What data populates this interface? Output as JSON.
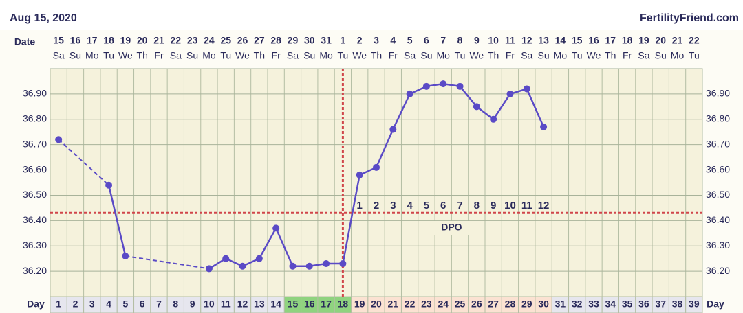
{
  "header": {
    "date": "Aug 15, 2020",
    "site": "FertilityFriend.com"
  },
  "chart_data": {
    "type": "line",
    "date_label": "Date",
    "day_label": "Day",
    "dates": [
      "15",
      "16",
      "17",
      "18",
      "19",
      "20",
      "21",
      "22",
      "23",
      "24",
      "25",
      "26",
      "27",
      "28",
      "29",
      "30",
      "31",
      "1",
      "2",
      "3",
      "4",
      "5",
      "6",
      "7",
      "8",
      "9",
      "10",
      "11",
      "12",
      "13",
      "14",
      "15",
      "16",
      "17",
      "18",
      "19",
      "20",
      "21",
      "22"
    ],
    "weekdays": [
      "Sa",
      "Su",
      "Mo",
      "Tu",
      "We",
      "Th",
      "Fr",
      "Sa",
      "Su",
      "Mo",
      "Tu",
      "We",
      "Th",
      "Fr",
      "Sa",
      "Su",
      "Mo",
      "Tu",
      "We",
      "Th",
      "Fr",
      "Sa",
      "Su",
      "Mo",
      "Tu",
      "We",
      "Th",
      "Fr",
      "Sa",
      "Su",
      "Mo",
      "Tu",
      "We",
      "Th",
      "Fr",
      "Sa",
      "Su",
      "Mo",
      "Tu"
    ],
    "x": [
      1,
      2,
      3,
      4,
      5,
      6,
      7,
      8,
      9,
      10,
      11,
      12,
      13,
      14,
      15,
      16,
      17,
      18,
      19,
      20,
      21,
      22,
      23,
      24,
      25,
      26,
      27,
      28,
      29,
      30,
      31,
      32,
      33,
      34,
      35,
      36,
      37,
      38,
      39
    ],
    "values": [
      36.72,
      null,
      null,
      36.54,
      36.26,
      null,
      null,
      null,
      null,
      36.21,
      36.25,
      36.22,
      36.25,
      36.37,
      36.22,
      36.22,
      36.23,
      36.23,
      36.58,
      36.61,
      36.76,
      36.9,
      36.93,
      36.94,
      36.93,
      36.85,
      36.8,
      36.9,
      36.92,
      36.77,
      null,
      null,
      null,
      null,
      null,
      null,
      null,
      null,
      null
    ],
    "color": "#5a4ac6",
    "ylim": [
      36.1,
      37.0
    ],
    "yticks": [
      {
        "value": 36.2,
        "label": "36.20"
      },
      {
        "value": 36.3,
        "label": "36.30"
      },
      {
        "value": 36.4,
        "label": "36.40"
      },
      {
        "value": 36.5,
        "label": "36.50"
      },
      {
        "value": 36.6,
        "label": "36.60"
      },
      {
        "value": 36.7,
        "label": "36.70"
      },
      {
        "value": 36.8,
        "label": "36.80"
      },
      {
        "value": 36.9,
        "label": "36.90"
      }
    ],
    "grid": true,
    "coverline": 36.43,
    "ovulation_day": 18,
    "dpo_x": [
      19,
      20,
      21,
      22,
      23,
      24,
      25,
      26,
      27,
      28,
      29,
      30
    ],
    "dpo": [
      1,
      2,
      3,
      4,
      5,
      6,
      7,
      8,
      9,
      10,
      11,
      12
    ],
    "dpo_label": "DPO",
    "day_phases": [
      {
        "from": 15,
        "to": 18,
        "color": "#8fd37f"
      },
      {
        "from": 19,
        "to": 30,
        "color": "#fbe2d2"
      }
    ],
    "day_color": "#e6e6ee"
  }
}
